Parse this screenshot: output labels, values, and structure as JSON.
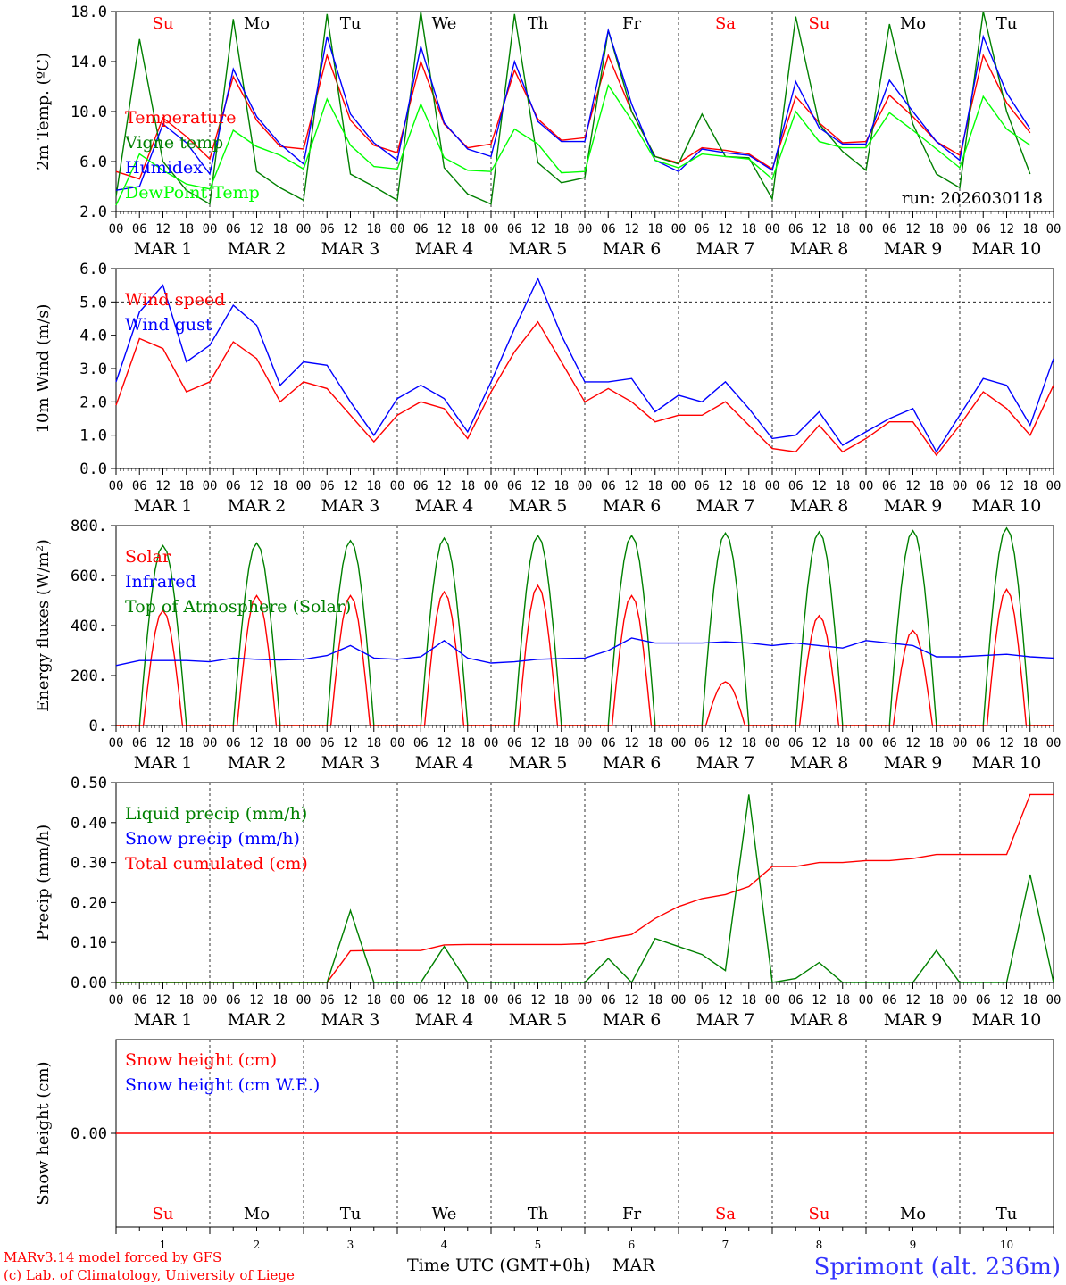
{
  "chart_data": [
    {
      "type": "line",
      "ylabel": "2m Temp. (ºC)",
      "ylim": [
        2.0,
        18.0
      ],
      "yticks": [
        "2.0",
        "6.0",
        "10.0",
        "14.0",
        "18.0"
      ],
      "ytick_values": [
        2,
        6,
        10,
        14,
        18
      ],
      "run_label": "run: 2026030118",
      "legend": [
        {
          "label": "Temperature",
          "color": "#ff0000"
        },
        {
          "label": "Vigne temp",
          "color": "#008000"
        },
        {
          "label": "Humidex",
          "color": "#0000ff"
        },
        {
          "label": "DewPoint Temp",
          "color": "#00ff00"
        }
      ],
      "series": [
        {
          "name": "Temperature",
          "color": "#ff0000",
          "values": [
            5.2,
            4.6,
            9.5,
            8.0,
            6.2,
            12.8,
            9.3,
            7.2,
            7.0,
            14.5,
            9.3,
            7.3,
            6.7,
            14.0,
            9.0,
            7.1,
            7.4,
            13.3,
            9.4,
            7.7,
            7.9,
            14.5,
            10.0,
            6.4,
            5.9,
            7.1,
            6.9,
            6.6,
            5.4,
            11.2,
            9.1,
            7.5,
            7.6,
            11.3,
            9.6,
            7.6,
            6.5,
            14.5,
            10.7,
            8.3
          ]
        },
        {
          "name": "Vigne temp",
          "color": "#008000",
          "values": [
            3.2,
            15.8,
            6.0,
            3.7,
            2.6,
            17.4,
            5.2,
            3.9,
            2.9,
            17.8,
            5.0,
            4.0,
            2.9,
            18.0,
            5.5,
            3.4,
            2.6,
            17.8,
            5.9,
            4.3,
            4.7,
            16.5,
            10.0,
            6.4,
            5.8,
            9.8,
            6.4,
            6.3,
            3.0,
            17.6,
            9.0,
            6.8,
            5.3,
            17.0,
            9.0,
            5.0,
            3.9,
            18.0,
            10.0,
            5.0
          ]
        },
        {
          "name": "Humidex",
          "color": "#0000ff",
          "values": [
            3.7,
            4.0,
            9.0,
            7.5,
            5.0,
            13.4,
            9.6,
            7.4,
            5.8,
            16.0,
            9.8,
            7.5,
            6.1,
            15.2,
            9.1,
            7.0,
            6.4,
            14.0,
            9.2,
            7.6,
            7.6,
            16.5,
            10.6,
            6.1,
            5.2,
            7.0,
            6.7,
            6.5,
            5.3,
            12.4,
            8.7,
            7.4,
            7.4,
            12.5,
            10.0,
            7.6,
            6.1,
            16.0,
            11.5,
            8.6
          ]
        },
        {
          "name": "DewPoint Temp",
          "color": "#00ff00",
          "values": [
            2.5,
            6.6,
            5.3,
            4.2,
            3.8,
            8.5,
            7.2,
            6.5,
            5.4,
            11.0,
            7.3,
            5.6,
            5.4,
            10.6,
            6.3,
            5.3,
            5.2,
            8.6,
            7.4,
            5.1,
            5.2,
            12.1,
            9.3,
            6.1,
            5.5,
            6.6,
            6.4,
            6.2,
            4.6,
            10.0,
            7.6,
            7.1,
            7.1,
            9.9,
            8.5,
            7.0,
            5.5,
            11.2,
            8.6,
            7.3
          ]
        }
      ]
    },
    {
      "type": "line",
      "ylabel": "10m Wind (m/s)",
      "ylim": [
        0.0,
        6.0
      ],
      "yticks": [
        "0.0",
        "1.0",
        "2.0",
        "3.0",
        "4.0",
        "5.0",
        "6.0"
      ],
      "ytick_values": [
        0,
        1,
        2,
        3,
        4,
        5,
        6
      ],
      "dashed_reference": 5.0,
      "legend": [
        {
          "label": "Wind speed",
          "color": "#ff0000"
        },
        {
          "label": "Wind gust",
          "color": "#0000ff"
        }
      ],
      "series": [
        {
          "name": "Wind speed",
          "color": "#ff0000",
          "values": [
            1.9,
            3.9,
            3.6,
            2.3,
            2.6,
            3.8,
            3.3,
            2.0,
            2.6,
            2.4,
            1.6,
            0.8,
            1.6,
            2.0,
            1.8,
            0.9,
            2.3,
            3.5,
            4.4,
            3.2,
            2.0,
            2.4,
            2.0,
            1.4,
            1.6,
            1.6,
            2.0,
            1.3,
            0.6,
            0.5,
            1.3,
            0.5,
            0.9,
            1.4,
            1.4,
            0.4,
            1.3,
            2.3,
            1.8,
            1.0,
            2.5
          ]
        },
        {
          "name": "Wind gust",
          "color": "#0000ff",
          "values": [
            2.6,
            4.7,
            5.5,
            3.2,
            3.7,
            4.9,
            4.3,
            2.5,
            3.2,
            3.1,
            2.0,
            1.0,
            2.1,
            2.5,
            2.1,
            1.1,
            2.6,
            4.2,
            5.7,
            4.0,
            2.6,
            2.6,
            2.7,
            1.7,
            2.2,
            2.0,
            2.6,
            1.8,
            0.9,
            1.0,
            1.7,
            0.7,
            1.1,
            1.5,
            1.8,
            0.5,
            1.6,
            2.7,
            2.5,
            1.3,
            3.3
          ]
        }
      ]
    },
    {
      "type": "line",
      "ylabel": "Energy fluxes (W/m²)",
      "ylim": [
        0,
        800
      ],
      "yticks": [
        "0.",
        "200.",
        "400.",
        "600.",
        "800."
      ],
      "ytick_values": [
        0,
        200,
        400,
        600,
        800
      ],
      "legend": [
        {
          "label": "Solar",
          "color": "#ff0000"
        },
        {
          "label": "Infrared",
          "color": "#0000ff"
        },
        {
          "label": "Top of Atmosphere (Solar)",
          "color": "#008000"
        }
      ],
      "daily_peaks": {
        "Solar": [
          460,
          520,
          520,
          535,
          560,
          520,
          175,
          440,
          380,
          545
        ],
        "Top of Atmosphere (Solar)": [
          720,
          730,
          740,
          750,
          760,
          760,
          770,
          775,
          780,
          790
        ]
      },
      "series": [
        {
          "name": "Infrared",
          "color": "#0000ff",
          "values": [
            240,
            260,
            260,
            260,
            255,
            270,
            265,
            262,
            265,
            280,
            320,
            270,
            265,
            275,
            340,
            270,
            250,
            255,
            265,
            268,
            270,
            300,
            350,
            330,
            330,
            330,
            335,
            330,
            320,
            330,
            320,
            310,
            340,
            330,
            320,
            275,
            275,
            280,
            285,
            275,
            270
          ]
        }
      ]
    },
    {
      "type": "line",
      "ylabel": "Precip (mm/h)",
      "ylim": [
        0.0,
        0.5
      ],
      "yticks": [
        "0.00",
        "0.10",
        "0.20",
        "0.30",
        "0.40",
        "0.50"
      ],
      "ytick_values": [
        0,
        0.1,
        0.2,
        0.3,
        0.4,
        0.5
      ],
      "legend": [
        {
          "label": "Liquid precip (mm/h)",
          "color": "#008000"
        },
        {
          "label": "Snow precip (mm/h)",
          "color": "#0000ff"
        },
        {
          "label": "Total cumulated (cm)",
          "color": "#ff0000"
        }
      ],
      "series": [
        {
          "name": "Total cumulated (cm)",
          "color": "#ff0000",
          "values": [
            0,
            0,
            0,
            0,
            0,
            0,
            0,
            0,
            0,
            0,
            0.079,
            0.08,
            0.08,
            0.08,
            0.094,
            0.095,
            0.095,
            0.095,
            0.095,
            0.095,
            0.097,
            0.11,
            0.12,
            0.16,
            0.19,
            0.21,
            0.22,
            0.24,
            0.29,
            0.29,
            0.3,
            0.3,
            0.305,
            0.305,
            0.31,
            0.32,
            0.32,
            0.32,
            0.32,
            0.47,
            0.47
          ]
        },
        {
          "name": "Liquid precip (mm/h)",
          "color": "#008000",
          "values": [
            0,
            0,
            0,
            0,
            0,
            0,
            0,
            0,
            0,
            0,
            0.18,
            0.0,
            0,
            0,
            0.09,
            0.0,
            0,
            0,
            0,
            0,
            0,
            0.06,
            0.0,
            0.11,
            0.09,
            0.07,
            0.03,
            0.47,
            0.0,
            0.01,
            0.05,
            0.0,
            0,
            0,
            0.0,
            0.08,
            0,
            0,
            0,
            0.27,
            0
          ]
        }
      ]
    },
    {
      "type": "line",
      "ylabel": "Snow height (cm)",
      "yticks": [
        "0.00"
      ],
      "ytick_values": [
        0
      ],
      "legend": [
        {
          "label": "Snow height (cm)",
          "color": "#ff0000"
        },
        {
          "label": "Snow height (cm W.E.)",
          "color": "#0000ff"
        }
      ],
      "series": [
        {
          "name": "Snow height (cm)",
          "color": "#ff0000",
          "values": [
            0,
            0,
            0,
            0,
            0,
            0,
            0,
            0,
            0,
            0,
            0
          ]
        }
      ]
    }
  ],
  "time_axis": {
    "hour_ticks": [
      "00",
      "06",
      "12",
      "18"
    ],
    "end_tick": "00",
    "date_labels": [
      "MAR  1",
      "MAR  2",
      "MAR  3",
      "MAR  4",
      "MAR  5",
      "MAR  6",
      "MAR  7",
      "MAR  8",
      "MAR  9",
      "MAR 10"
    ],
    "days": [
      "Su",
      "Mo",
      "Tu",
      "We",
      "Th",
      "Fr",
      "Sa",
      "Su",
      "Mo",
      "Tu"
    ],
    "weekend_flags": [
      true,
      false,
      false,
      false,
      false,
      false,
      true,
      true,
      false,
      false
    ],
    "day_numbers": [
      "1",
      "2",
      "3",
      "4",
      "5",
      "6",
      "7",
      "8",
      "9",
      "10"
    ],
    "xlabel": "Time UTC (GMT+0h)",
    "month": "MAR"
  },
  "colors": {
    "weekend_day": "#ff0000",
    "weekday": "#000000",
    "station": "#3333ff",
    "credits": "#ff0000"
  },
  "footer": {
    "credit_line1": "MARv3.14 model forced by GFS",
    "credit_line2": "(c) Lab. of Climatology, University of Liege",
    "station": "Sprimont (alt. 236m)"
  }
}
